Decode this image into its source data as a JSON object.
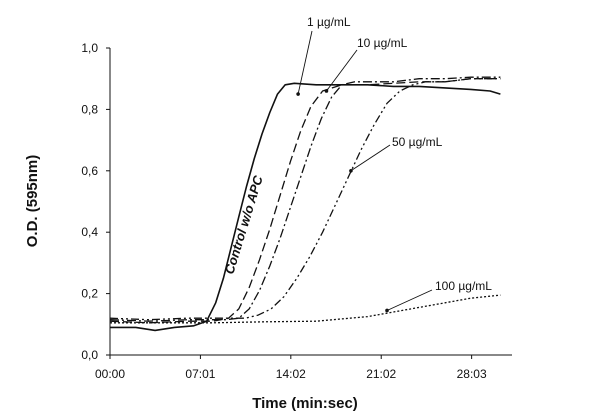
{
  "chart_data": {
    "type": "line",
    "xlabel": "Time (min:sec)",
    "ylabel": "O.D. (595nm)",
    "x_ticks": [
      "00:00",
      "07:01",
      "14:02",
      "21:02",
      "28:03"
    ],
    "y_ticks": [
      "0,0",
      "0,2",
      "0,4",
      "0,6",
      "0,8",
      "1,0"
    ],
    "xlim": [
      0,
      31.2
    ],
    "ylim": [
      0,
      1.0
    ],
    "grid": false,
    "legend": "none",
    "series": [
      {
        "name": "Control w/o APC",
        "style": "solid",
        "x": [
          0,
          2,
          3.5,
          5,
          6.5,
          7.5,
          8.2,
          8.8,
          9.4,
          10.0,
          10.6,
          11.2,
          11.8,
          12.4,
          13.0,
          13.6,
          14.3,
          16,
          18,
          20,
          22,
          24,
          26,
          28,
          29.5,
          30.3
        ],
        "y": [
          0.09,
          0.09,
          0.08,
          0.09,
          0.095,
          0.11,
          0.17,
          0.25,
          0.35,
          0.45,
          0.55,
          0.64,
          0.72,
          0.79,
          0.85,
          0.88,
          0.885,
          0.88,
          0.88,
          0.88,
          0.875,
          0.875,
          0.87,
          0.865,
          0.86,
          0.85
        ]
      },
      {
        "name": "1 µg/mL",
        "style": "dashed",
        "x": [
          0,
          3,
          6,
          8,
          9.2,
          10.0,
          10.8,
          11.6,
          12.4,
          13.2,
          14.0,
          14.8,
          15.6,
          16.5,
          18,
          20,
          22,
          24,
          26,
          28,
          30.3
        ],
        "y": [
          0.11,
          0.105,
          0.11,
          0.11,
          0.12,
          0.15,
          0.22,
          0.31,
          0.41,
          0.52,
          0.63,
          0.73,
          0.81,
          0.86,
          0.88,
          0.88,
          0.885,
          0.89,
          0.89,
          0.9,
          0.9
        ]
      },
      {
        "name": "10 µg/mL",
        "style": "dashdot",
        "x": [
          0,
          3,
          6,
          9,
          10.0,
          10.8,
          11.6,
          12.4,
          13.2,
          14.0,
          14.8,
          15.6,
          16.4,
          17.2,
          18.0,
          19,
          20.5,
          22,
          24,
          26,
          28,
          30.3
        ],
        "y": [
          0.115,
          0.11,
          0.115,
          0.115,
          0.12,
          0.15,
          0.21,
          0.29,
          0.38,
          0.48,
          0.58,
          0.68,
          0.77,
          0.84,
          0.88,
          0.89,
          0.89,
          0.89,
          0.9,
          0.9,
          0.905,
          0.905
        ]
      },
      {
        "name": "50 µg/mL",
        "style": "dashdotdot",
        "x": [
          0,
          3,
          6,
          9,
          10.5,
          11.5,
          12.5,
          13.5,
          14.5,
          15.5,
          16.5,
          17.5,
          18.5,
          19.5,
          20.5,
          21.5,
          22.5,
          23.5,
          24.5,
          26,
          28,
          30.3
        ],
        "y": [
          0.12,
          0.115,
          0.12,
          0.12,
          0.12,
          0.13,
          0.15,
          0.19,
          0.25,
          0.32,
          0.4,
          0.49,
          0.58,
          0.67,
          0.75,
          0.82,
          0.86,
          0.88,
          0.89,
          0.89,
          0.9,
          0.9
        ]
      },
      {
        "name": "100 µg/mL",
        "style": "dotted",
        "x": [
          0,
          4,
          8,
          12,
          16,
          20,
          22,
          24,
          26,
          28,
          30.3
        ],
        "y": [
          0.105,
          0.105,
          0.105,
          0.108,
          0.11,
          0.125,
          0.14,
          0.155,
          0.17,
          0.185,
          0.195
        ]
      }
    ],
    "annotations": [
      {
        "text": "Control w/o APC",
        "series": "Control w/o APC"
      },
      {
        "text": "1 µg/mL",
        "series": "1 µg/mL",
        "point": [
          14.6,
          0.85
        ]
      },
      {
        "text": "10 µg/mL",
        "series": "10 µg/mL",
        "point": [
          16.8,
          0.86
        ]
      },
      {
        "text": "50 µg/mL",
        "series": "50 µg/mL",
        "point": [
          18.7,
          0.6
        ]
      },
      {
        "text": "100 µg/mL",
        "series": "100 µg/mL",
        "point": [
          21.5,
          0.145
        ]
      }
    ]
  }
}
